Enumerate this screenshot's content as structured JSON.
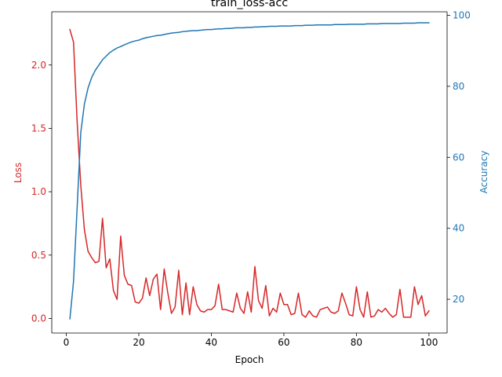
{
  "chart_data": {
    "type": "line",
    "title": "train_loss-acc",
    "xlabel": "Epoch",
    "ylabel_left": "Loss",
    "ylabel_right": "Accuracy",
    "xlim": [
      -4,
      105
    ],
    "ylim_left": [
      -0.115,
      2.42
    ],
    "ylim_right": [
      10.5,
      101
    ],
    "x_ticks": [
      "0",
      "20",
      "40",
      "60",
      "80",
      "100"
    ],
    "y_ticks_left": [
      "0.0",
      "0.5",
      "1.0",
      "1.5",
      "2.0"
    ],
    "y_ticks_right": [
      "20",
      "40",
      "60",
      "80",
      "100"
    ],
    "grid": false,
    "colors": {
      "loss": "#d62728",
      "accuracy": "#1f77b4",
      "axis": "#000000"
    },
    "x": [
      1,
      2,
      3,
      4,
      5,
      6,
      7,
      8,
      9,
      10,
      11,
      12,
      13,
      14,
      15,
      16,
      17,
      18,
      19,
      20,
      21,
      22,
      23,
      24,
      25,
      26,
      27,
      28,
      29,
      30,
      31,
      32,
      33,
      34,
      35,
      36,
      37,
      38,
      39,
      40,
      41,
      42,
      43,
      44,
      45,
      46,
      47,
      48,
      49,
      50,
      51,
      52,
      53,
      54,
      55,
      56,
      57,
      58,
      59,
      60,
      61,
      62,
      63,
      64,
      65,
      66,
      67,
      68,
      69,
      70,
      71,
      72,
      73,
      74,
      75,
      76,
      77,
      78,
      79,
      80,
      81,
      82,
      83,
      84,
      85,
      86,
      87,
      88,
      89,
      90,
      91,
      92,
      93,
      94,
      95,
      96,
      97,
      98,
      99,
      100
    ],
    "series": [
      {
        "key": "loss",
        "axis": "left",
        "values": [
          2.28,
          2.18,
          1.55,
          1.05,
          0.7,
          0.53,
          0.48,
          0.44,
          0.45,
          0.79,
          0.4,
          0.47,
          0.22,
          0.15,
          0.65,
          0.34,
          0.27,
          0.26,
          0.13,
          0.12,
          0.16,
          0.32,
          0.18,
          0.31,
          0.35,
          0.07,
          0.39,
          0.2,
          0.04,
          0.09,
          0.38,
          0.03,
          0.28,
          0.03,
          0.25,
          0.11,
          0.06,
          0.05,
          0.07,
          0.07,
          0.1,
          0.27,
          0.07,
          0.07,
          0.06,
          0.05,
          0.2,
          0.08,
          0.04,
          0.21,
          0.05,
          0.41,
          0.14,
          0.08,
          0.26,
          0.02,
          0.08,
          0.05,
          0.2,
          0.11,
          0.11,
          0.03,
          0.04,
          0.2,
          0.03,
          0.01,
          0.06,
          0.02,
          0.01,
          0.07,
          0.08,
          0.09,
          0.05,
          0.04,
          0.06,
          0.2,
          0.12,
          0.03,
          0.02,
          0.25,
          0.07,
          0.01,
          0.21,
          0.01,
          0.02,
          0.07,
          0.05,
          0.08,
          0.04,
          0.01,
          0.03,
          0.23,
          0.01,
          0.01,
          0.01,
          0.25,
          0.11,
          0.18,
          0.02,
          0.06
        ]
      },
      {
        "key": "accuracy",
        "axis": "right",
        "values": [
          14.5,
          25,
          46,
          67,
          75,
          79.5,
          82.5,
          84.5,
          86,
          87.5,
          88.5,
          89.5,
          90.2,
          90.8,
          91.2,
          91.7,
          92.1,
          92.5,
          92.8,
          93.0,
          93.4,
          93.7,
          93.9,
          94.1,
          94.3,
          94.4,
          94.6,
          94.8,
          95.0,
          95.1,
          95.2,
          95.4,
          95.5,
          95.6,
          95.7,
          95.7,
          95.8,
          95.9,
          96.0,
          96.0,
          96.1,
          96.2,
          96.2,
          96.3,
          96.3,
          96.4,
          96.5,
          96.5,
          96.5,
          96.6,
          96.6,
          96.7,
          96.7,
          96.8,
          96.8,
          96.9,
          96.9,
          96.9,
          97.0,
          97.0,
          97.0,
          97.0,
          97.1,
          97.1,
          97.1,
          97.2,
          97.2,
          97.2,
          97.3,
          97.3,
          97.3,
          97.3,
          97.3,
          97.4,
          97.4,
          97.4,
          97.4,
          97.5,
          97.5,
          97.5,
          97.5,
          97.5,
          97.6,
          97.6,
          97.6,
          97.6,
          97.7,
          97.7,
          97.7,
          97.7,
          97.7,
          97.7,
          97.8,
          97.8,
          97.8,
          97.8,
          97.9,
          97.9,
          97.9,
          97.9
        ]
      }
    ]
  }
}
